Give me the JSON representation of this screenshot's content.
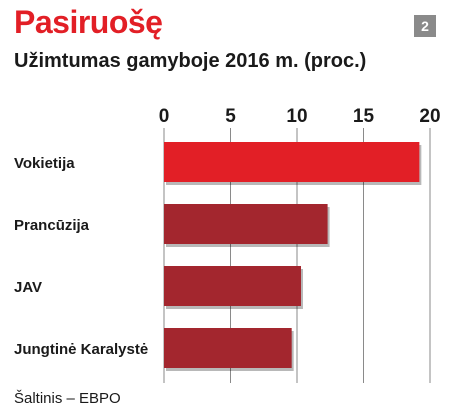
{
  "title": "Pasiruošę",
  "subtitle": "Užimtumas gamyboje 2016 m. (proc.)",
  "badge": "2",
  "source": "Šaltinis – EBPO",
  "colors": {
    "title": "#e21f26",
    "highlight_bar": "#e21f26",
    "bar": "#a3262e",
    "grid": "#8a8a8a",
    "badge": "#8a8a8a"
  },
  "chart_data": {
    "type": "bar",
    "orientation": "horizontal",
    "categories": [
      "Vokietija",
      "Prancūzija",
      "JAV",
      "Jungtinė Karalystė"
    ],
    "values": [
      19.2,
      12.3,
      10.3,
      9.6
    ],
    "highlight_index": 0,
    "xlim": [
      0,
      20
    ],
    "xticks": [
      0,
      5,
      10,
      15,
      20
    ],
    "tick_labels": [
      "0",
      "5",
      "10",
      "15",
      "20"
    ],
    "grid": true,
    "ticks_position": "top"
  }
}
